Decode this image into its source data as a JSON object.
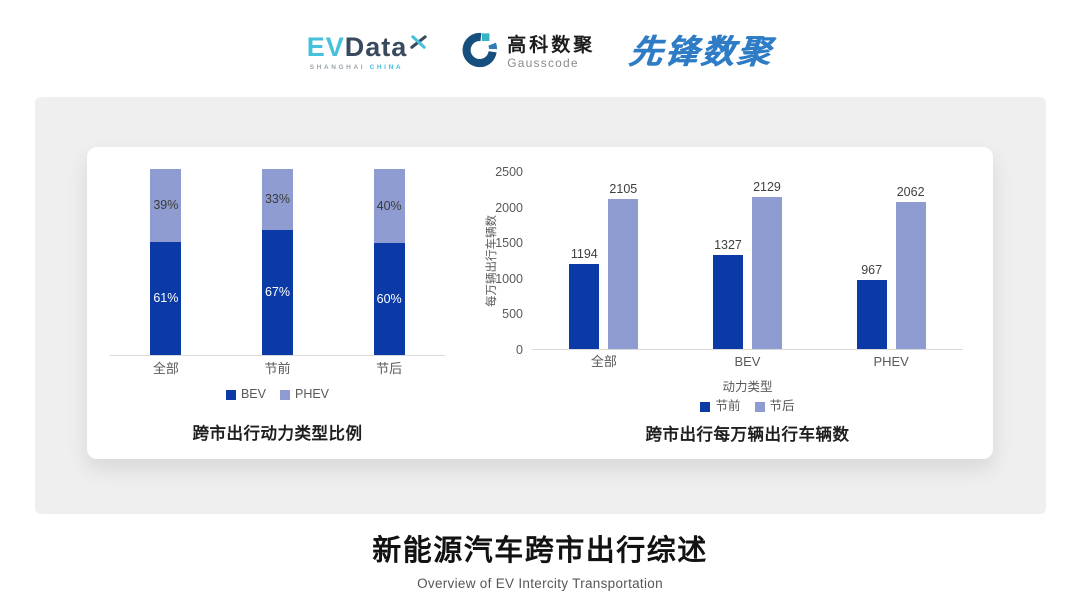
{
  "header": {
    "evdata": {
      "ev": "EV",
      "data": "Data",
      "sub_left": "SHANGHAI",
      "sub_right": "CHINA"
    },
    "gausscode": {
      "cn": "高科数聚",
      "en": "Gausscode"
    },
    "pioneer": {
      "text": "先锋数聚"
    }
  },
  "colors": {
    "series_dark_blue": "#0b3aa7",
    "series_light_blue": "#8f9cd1",
    "axis_label_gray": "#595959",
    "baseline_gray": "#d9d9d9",
    "value_label_gray": "#3f3f3f",
    "evdata_cyan": "#45c0dd",
    "evdata_navy": "#3a4a5e",
    "gausscode_navy": "#164e7e",
    "gausscode_blue": "#2f7cb5",
    "gausscode_teal": "#35b4c6",
    "pioneer_blue": "#2e7cc6",
    "panel_gray": "#efefef"
  },
  "chart_data": [
    {
      "type": "bar",
      "subtype": "stacked-100",
      "title": "跨市出行动力类型比例",
      "categories": [
        "全部",
        "节前",
        "节后"
      ],
      "series": [
        {
          "name": "BEV",
          "values": [
            61,
            67,
            60
          ]
        },
        {
          "name": "PHEV",
          "values": [
            39,
            33,
            40
          ]
        }
      ],
      "value_suffix": "%",
      "ylim": [
        0,
        100
      ],
      "grid": false,
      "legend_position": "bottom"
    },
    {
      "type": "bar",
      "subtype": "grouped",
      "title": "跨市出行每万辆出行车辆数",
      "categories": [
        "全部",
        "BEV",
        "PHEV"
      ],
      "series": [
        {
          "name": "节前",
          "values": [
            1194,
            1327,
            967
          ]
        },
        {
          "name": "节后",
          "values": [
            2105,
            2129,
            2062
          ]
        }
      ],
      "xlabel": "动力类型",
      "ylabel": "每万辆出行车辆数",
      "ylim": [
        0,
        2500
      ],
      "yticks": [
        0,
        500,
        1000,
        1500,
        2000,
        2500
      ],
      "grid": false,
      "legend_position": "bottom"
    }
  ],
  "footer": {
    "title": "新能源汽车跨市出行综述",
    "subtitle": "Overview of EV Intercity Transportation"
  }
}
